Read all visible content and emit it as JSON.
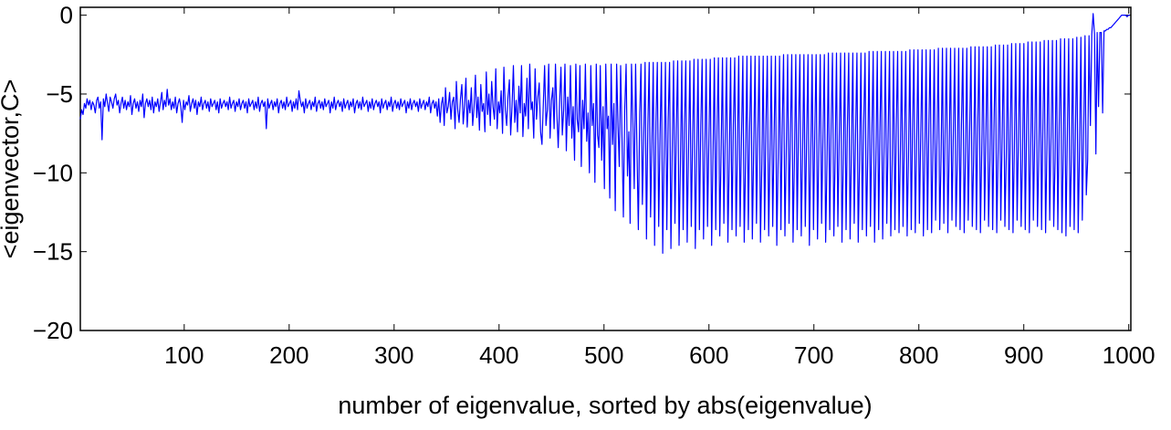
{
  "chart_data": {
    "type": "line",
    "title": "",
    "xlabel": "number of eigenvalue, sorted by abs(eigenvalue)",
    "ylabel": "<eigenvector,C>",
    "xlim": [
      1,
      1002
    ],
    "ylim": [
      -20,
      0.5
    ],
    "xticks": [
      100,
      200,
      300,
      400,
      500,
      600,
      700,
      800,
      900,
      1000
    ],
    "xtick_labels": [
      "100",
      "200",
      "300",
      "400",
      "500",
      "600",
      "700",
      "800",
      "900",
      "1000"
    ],
    "yticks": [
      0,
      -5,
      -10,
      -15,
      -20
    ],
    "ytick_labels": [
      "0",
      "−5",
      "−10",
      "−15",
      "−20"
    ],
    "grid": false,
    "line_color": "#0000ff",
    "series": [
      {
        "values": [
          -6.6,
          -6.0,
          -6.3,
          -5.6,
          -5.9,
          -5.3,
          -5.7,
          -5.4,
          -6.0,
          -5.5,
          -5.7,
          -6.2,
          -5.4,
          -5.2,
          -5.9,
          -5.5,
          -7.9,
          -5.3,
          -5.8,
          -5.0,
          -5.6,
          -6.1,
          -5.2,
          -5.5,
          -5.9,
          -5.3,
          -5.0,
          -5.7,
          -5.4,
          -6.2,
          -5.6,
          -5.2,
          -5.9,
          -5.4,
          -6.0,
          -5.5,
          -5.8,
          -5.1,
          -6.3,
          -5.6,
          -5.3,
          -5.9,
          -5.5,
          -6.1,
          -5.4,
          -5.8,
          -5.0,
          -6.5,
          -5.6,
          -5.3,
          -5.8,
          -5.4,
          -6.0,
          -5.2,
          -6.2,
          -5.5,
          -5.8,
          -5.3,
          -6.1,
          -5.5,
          -4.9,
          -6.0,
          -5.4,
          -5.8,
          -4.7,
          -5.7,
          -5.3,
          -6.0,
          -5.5,
          -5.9,
          -5.2,
          -6.2,
          -5.6,
          -5.3,
          -5.8,
          -6.8,
          -5.4,
          -6.0,
          -5.5,
          -5.7,
          -5.1,
          -6.1,
          -5.6,
          -5.3,
          -5.9,
          -5.4,
          -6.3,
          -5.5,
          -5.8,
          -5.2,
          -6.0,
          -5.6,
          -5.4,
          -5.9,
          -5.5,
          -6.1,
          -5.3,
          -5.8,
          -5.6,
          -5.4,
          -6.0,
          -5.5,
          -6.2,
          -5.3,
          -5.9,
          -5.6,
          -5.4,
          -5.8,
          -5.5,
          -6.0,
          -5.2,
          -5.9,
          -5.6,
          -5.4,
          -6.1,
          -5.5,
          -5.8,
          -5.3,
          -6.0,
          -5.6,
          -5.4,
          -5.9,
          -5.5,
          -6.2,
          -5.3,
          -5.8,
          -5.6,
          -5.4,
          -6.0,
          -5.5,
          -5.9,
          -5.2,
          -6.1,
          -5.6,
          -5.4,
          -5.8,
          -5.5,
          -7.2,
          -5.3,
          -5.9,
          -5.6,
          -5.4,
          -6.0,
          -5.5,
          -5.8,
          -5.3,
          -6.2,
          -5.6,
          -5.4,
          -5.9,
          -5.5,
          -6.0,
          -5.2,
          -5.8,
          -5.6,
          -5.4,
          -6.1,
          -5.5,
          -5.9,
          -5.3,
          -6.0,
          -4.8,
          -5.4,
          -5.8,
          -5.5,
          -6.2,
          -5.3,
          -5.9,
          -5.6,
          -5.4,
          -6.0,
          -5.5,
          -5.8,
          -5.2,
          -6.1,
          -5.6,
          -5.4,
          -5.9,
          -5.5,
          -6.0,
          -5.3,
          -5.8,
          -5.6,
          -5.4,
          -6.2,
          -5.5,
          -5.9,
          -5.2,
          -6.0,
          -5.6,
          -5.4,
          -5.8,
          -5.5,
          -6.1,
          -5.3,
          -5.9,
          -5.6,
          -5.4,
          -6.0,
          -5.5,
          -5.8,
          -5.3,
          -6.2,
          -5.6,
          -5.4,
          -5.9,
          -5.5,
          -6.0,
          -5.2,
          -5.8,
          -5.6,
          -5.4,
          -6.1,
          -5.5,
          -5.9,
          -5.3,
          -6.0,
          -5.6,
          -5.4,
          -5.8,
          -5.5,
          -6.2,
          -5.3,
          -5.9,
          -5.6,
          -5.4,
          -6.0,
          -5.5,
          -5.8,
          -5.2,
          -6.1,
          -5.6,
          -5.4,
          -5.9,
          -5.5,
          -6.0,
          -5.3,
          -5.8,
          -5.6,
          -5.4,
          -6.2,
          -5.5,
          -5.9,
          -5.3,
          -6.0,
          -5.6,
          -5.4,
          -5.8,
          -5.5,
          -6.1,
          -5.3,
          -5.9,
          -5.6,
          -5.4,
          -6.0,
          -5.5,
          -5.8,
          -5.2,
          -6.2,
          -5.6,
          -5.4,
          -5.9,
          -5.5,
          -6.4,
          -5.3,
          -6.8,
          -5.6,
          -5.2,
          -7.0,
          -4.6,
          -6.2,
          -5.8,
          -4.9,
          -6.6,
          -5.5,
          -5.2,
          -7.2,
          -4.2,
          -6.0,
          -6.8,
          -5.3,
          -4.4,
          -6.9,
          -5.7,
          -4.0,
          -7.1,
          -5.4,
          -6.2,
          -4.6,
          -7.0,
          -5.8,
          -3.8,
          -6.5,
          -5.2,
          -7.3,
          -4.4,
          -6.1,
          -5.6,
          -7.4,
          -3.6,
          -6.3,
          -5.0,
          -7.0,
          -4.2,
          -5.8,
          -6.6,
          -3.4,
          -7.2,
          -5.5,
          -6.2,
          -4.8,
          -7.5,
          -3.3,
          -6.0,
          -7.0,
          -5.2,
          -4.1,
          -7.6,
          -5.8,
          -3.2,
          -6.8,
          -5.4,
          -7.4,
          -4.5,
          -6.2,
          -3.2,
          -7.7,
          -5.6,
          -6.4,
          -4.0,
          -7.2,
          -3.1,
          -6.0,
          -5.5,
          -7.8,
          -3.4,
          -6.6,
          -5.2,
          -4.3,
          -7.4,
          -8.2,
          -5.8,
          -3.2,
          -7.0,
          -6.0,
          -3.1,
          -7.8,
          -5.4,
          -4.6,
          -7.2,
          -3.1,
          -6.2,
          -8.4,
          -5.6,
          -3.3,
          -7.6,
          -6.0,
          -3.1,
          -8.6,
          -5.2,
          -7.0,
          -3.2,
          -7.8,
          -5.8,
          -9.2,
          -3.1,
          -6.6,
          -7.4,
          -3.2,
          -9.6,
          -5.4,
          -7.2,
          -3.1,
          -8.0,
          -6.2,
          -10.0,
          -3.2,
          -7.0,
          -5.6,
          -10.6,
          -3.1,
          -7.6,
          -8.4,
          -3.2,
          -9.2,
          -5.8,
          -11.0,
          -3.1,
          -7.2,
          -6.4,
          -11.6,
          -3.1,
          -8.2,
          -5.6,
          -12.4,
          -3.1,
          -7.0,
          -9.6,
          -3.2,
          -7.8,
          -12.8,
          -6.0,
          -3.1,
          -10.2,
          -7.4,
          -13.2,
          -3.1,
          -6.6,
          -11.0,
          -3.1,
          -8.6,
          -13.6,
          -6.2,
          -3.1,
          -12.0,
          -7.8,
          -3.0,
          -14.2,
          -7.0,
          -3.0,
          -12.8,
          -8.4,
          -3.0,
          -14.6,
          -6.8,
          -3.0,
          -13.4,
          -7.6,
          -3.0,
          -15.1,
          -9.0,
          -3.0,
          -13.6,
          -6.6,
          -3.0,
          -14.8,
          -8.2,
          -2.9,
          -13.2,
          -7.2,
          -2.9,
          -14.6,
          -9.4,
          -2.9,
          -13.6,
          -7.0,
          -2.9,
          -14.4,
          -8.6,
          -2.9,
          -13.4,
          -7.6,
          -2.8,
          -14.8,
          -9.2,
          -2.8,
          -13.6,
          -7.0,
          -2.8,
          -14.2,
          -8.4,
          -2.8,
          -13.4,
          -7.8,
          -2.8,
          -14.6,
          -9.0,
          -2.7,
          -13.6,
          -7.2,
          -2.7,
          -14.0,
          -8.6,
          -2.7,
          -13.2,
          -7.6,
          -2.7,
          -14.4,
          -9.2,
          -2.7,
          -13.6,
          -7.0,
          -2.7,
          -14.0,
          -8.2,
          -2.6,
          -13.4,
          -7.8,
          -2.6,
          -14.4,
          -9.0,
          -2.6,
          -13.6,
          -7.4,
          -2.6,
          -14.2,
          -8.4,
          -2.6,
          -13.2,
          -7.6,
          -2.6,
          -14.4,
          -9.4,
          -2.6,
          -13.6,
          -7.0,
          -2.6,
          -14.0,
          -8.6,
          -2.6,
          -13.4,
          -7.8,
          -2.6,
          -14.6,
          -9.0,
          -2.6,
          -13.6,
          -7.2,
          -2.5,
          -14.0,
          -8.4,
          -2.5,
          -13.2,
          -7.6,
          -2.5,
          -14.4,
          -9.2,
          -2.5,
          -13.6,
          -7.0,
          -2.5,
          -14.0,
          -8.6,
          -2.5,
          -13.4,
          -7.8,
          -2.5,
          -14.6,
          -9.0,
          -2.5,
          -13.6,
          -7.4,
          -2.5,
          -14.2,
          -8.4,
          -2.5,
          -13.2,
          -7.6,
          -2.5,
          -14.4,
          -9.4,
          -2.4,
          -13.6,
          -7.0,
          -2.4,
          -14.0,
          -8.6,
          -2.4,
          -13.4,
          -7.8,
          -2.4,
          -14.4,
          -9.0,
          -2.4,
          -13.6,
          -7.2,
          -2.4,
          -14.2,
          -8.4,
          -2.4,
          -13.2,
          -7.6,
          -2.4,
          -14.4,
          -9.2,
          -2.4,
          -13.6,
          -7.0,
          -2.4,
          -14.0,
          -8.6,
          -2.3,
          -13.4,
          -7.8,
          -2.3,
          -14.4,
          -9.0,
          -2.3,
          -13.6,
          -7.4,
          -2.3,
          -14.2,
          -8.4,
          -2.3,
          -13.2,
          -7.6,
          -2.3,
          -14.0,
          -9.4,
          -2.3,
          -13.6,
          -7.0,
          -2.3,
          -13.8,
          -8.6,
          -2.3,
          -13.4,
          -7.8,
          -2.3,
          -14.0,
          -9.0,
          -2.2,
          -13.6,
          -7.2,
          -2.2,
          -13.8,
          -8.4,
          -2.2,
          -13.2,
          -7.6,
          -2.2,
          -14.0,
          -9.2,
          -2.2,
          -13.6,
          -7.0,
          -2.2,
          -13.8,
          -8.6,
          -2.2,
          -13.0,
          -7.8,
          -2.1,
          -13.6,
          -9.0,
          -2.1,
          -13.2,
          -7.4,
          -2.1,
          -13.8,
          -8.4,
          -2.1,
          -13.0,
          -7.6,
          -2.1,
          -13.4,
          -9.2,
          -2.1,
          -13.6,
          -7.0,
          -2.1,
          -13.8,
          -8.6,
          -2.1,
          -13.0,
          -7.8,
          -2.0,
          -13.4,
          -9.0,
          -2.0,
          -13.6,
          -7.2,
          -2.0,
          -13.8,
          -8.4,
          -2.0,
          -13.0,
          -7.6,
          -2.0,
          -13.4,
          -9.2,
          -2.0,
          -13.6,
          -7.0,
          -1.9,
          -13.8,
          -8.6,
          -1.9,
          -13.0,
          -7.8,
          -1.9,
          -13.4,
          -9.0,
          -1.9,
          -13.6,
          -7.4,
          -1.8,
          -13.8,
          -8.4,
          -1.8,
          -13.0,
          -7.6,
          -1.8,
          -13.4,
          -9.2,
          -1.8,
          -13.6,
          -7.0,
          -1.7,
          -13.8,
          -8.6,
          -1.7,
          -13.0,
          -7.8,
          -1.7,
          -13.4,
          -9.0,
          -1.7,
          -13.6,
          -7.2,
          -1.6,
          -13.8,
          -8.4,
          -1.6,
          -13.0,
          -7.6,
          -1.6,
          -13.4,
          -9.2,
          -1.6,
          -13.6,
          -7.0,
          -1.5,
          -13.8,
          -8.6,
          -1.5,
          -14.0,
          -7.8,
          -1.5,
          -13.4,
          -9.0,
          -1.5,
          -13.6,
          -7.4,
          -1.4,
          -13.8,
          -8.4,
          -1.4,
          -13.0,
          -7.6,
          -1.3,
          -11.4,
          -9.2,
          -1.3,
          -7.0,
          -1.2,
          0.1,
          -1.2,
          -8.8,
          -1.1,
          -5.8,
          -1.1,
          -1.1,
          -6.2,
          -1.0,
          -1.0,
          -0.9,
          -0.9,
          -0.8,
          -0.8,
          -0.7,
          -0.6,
          -0.5,
          -0.4,
          -0.3,
          -0.2,
          -0.1,
          0.0,
          0.0,
          0.0,
          0.0,
          -0.1,
          0.0,
          0.0
        ]
      }
    ]
  }
}
